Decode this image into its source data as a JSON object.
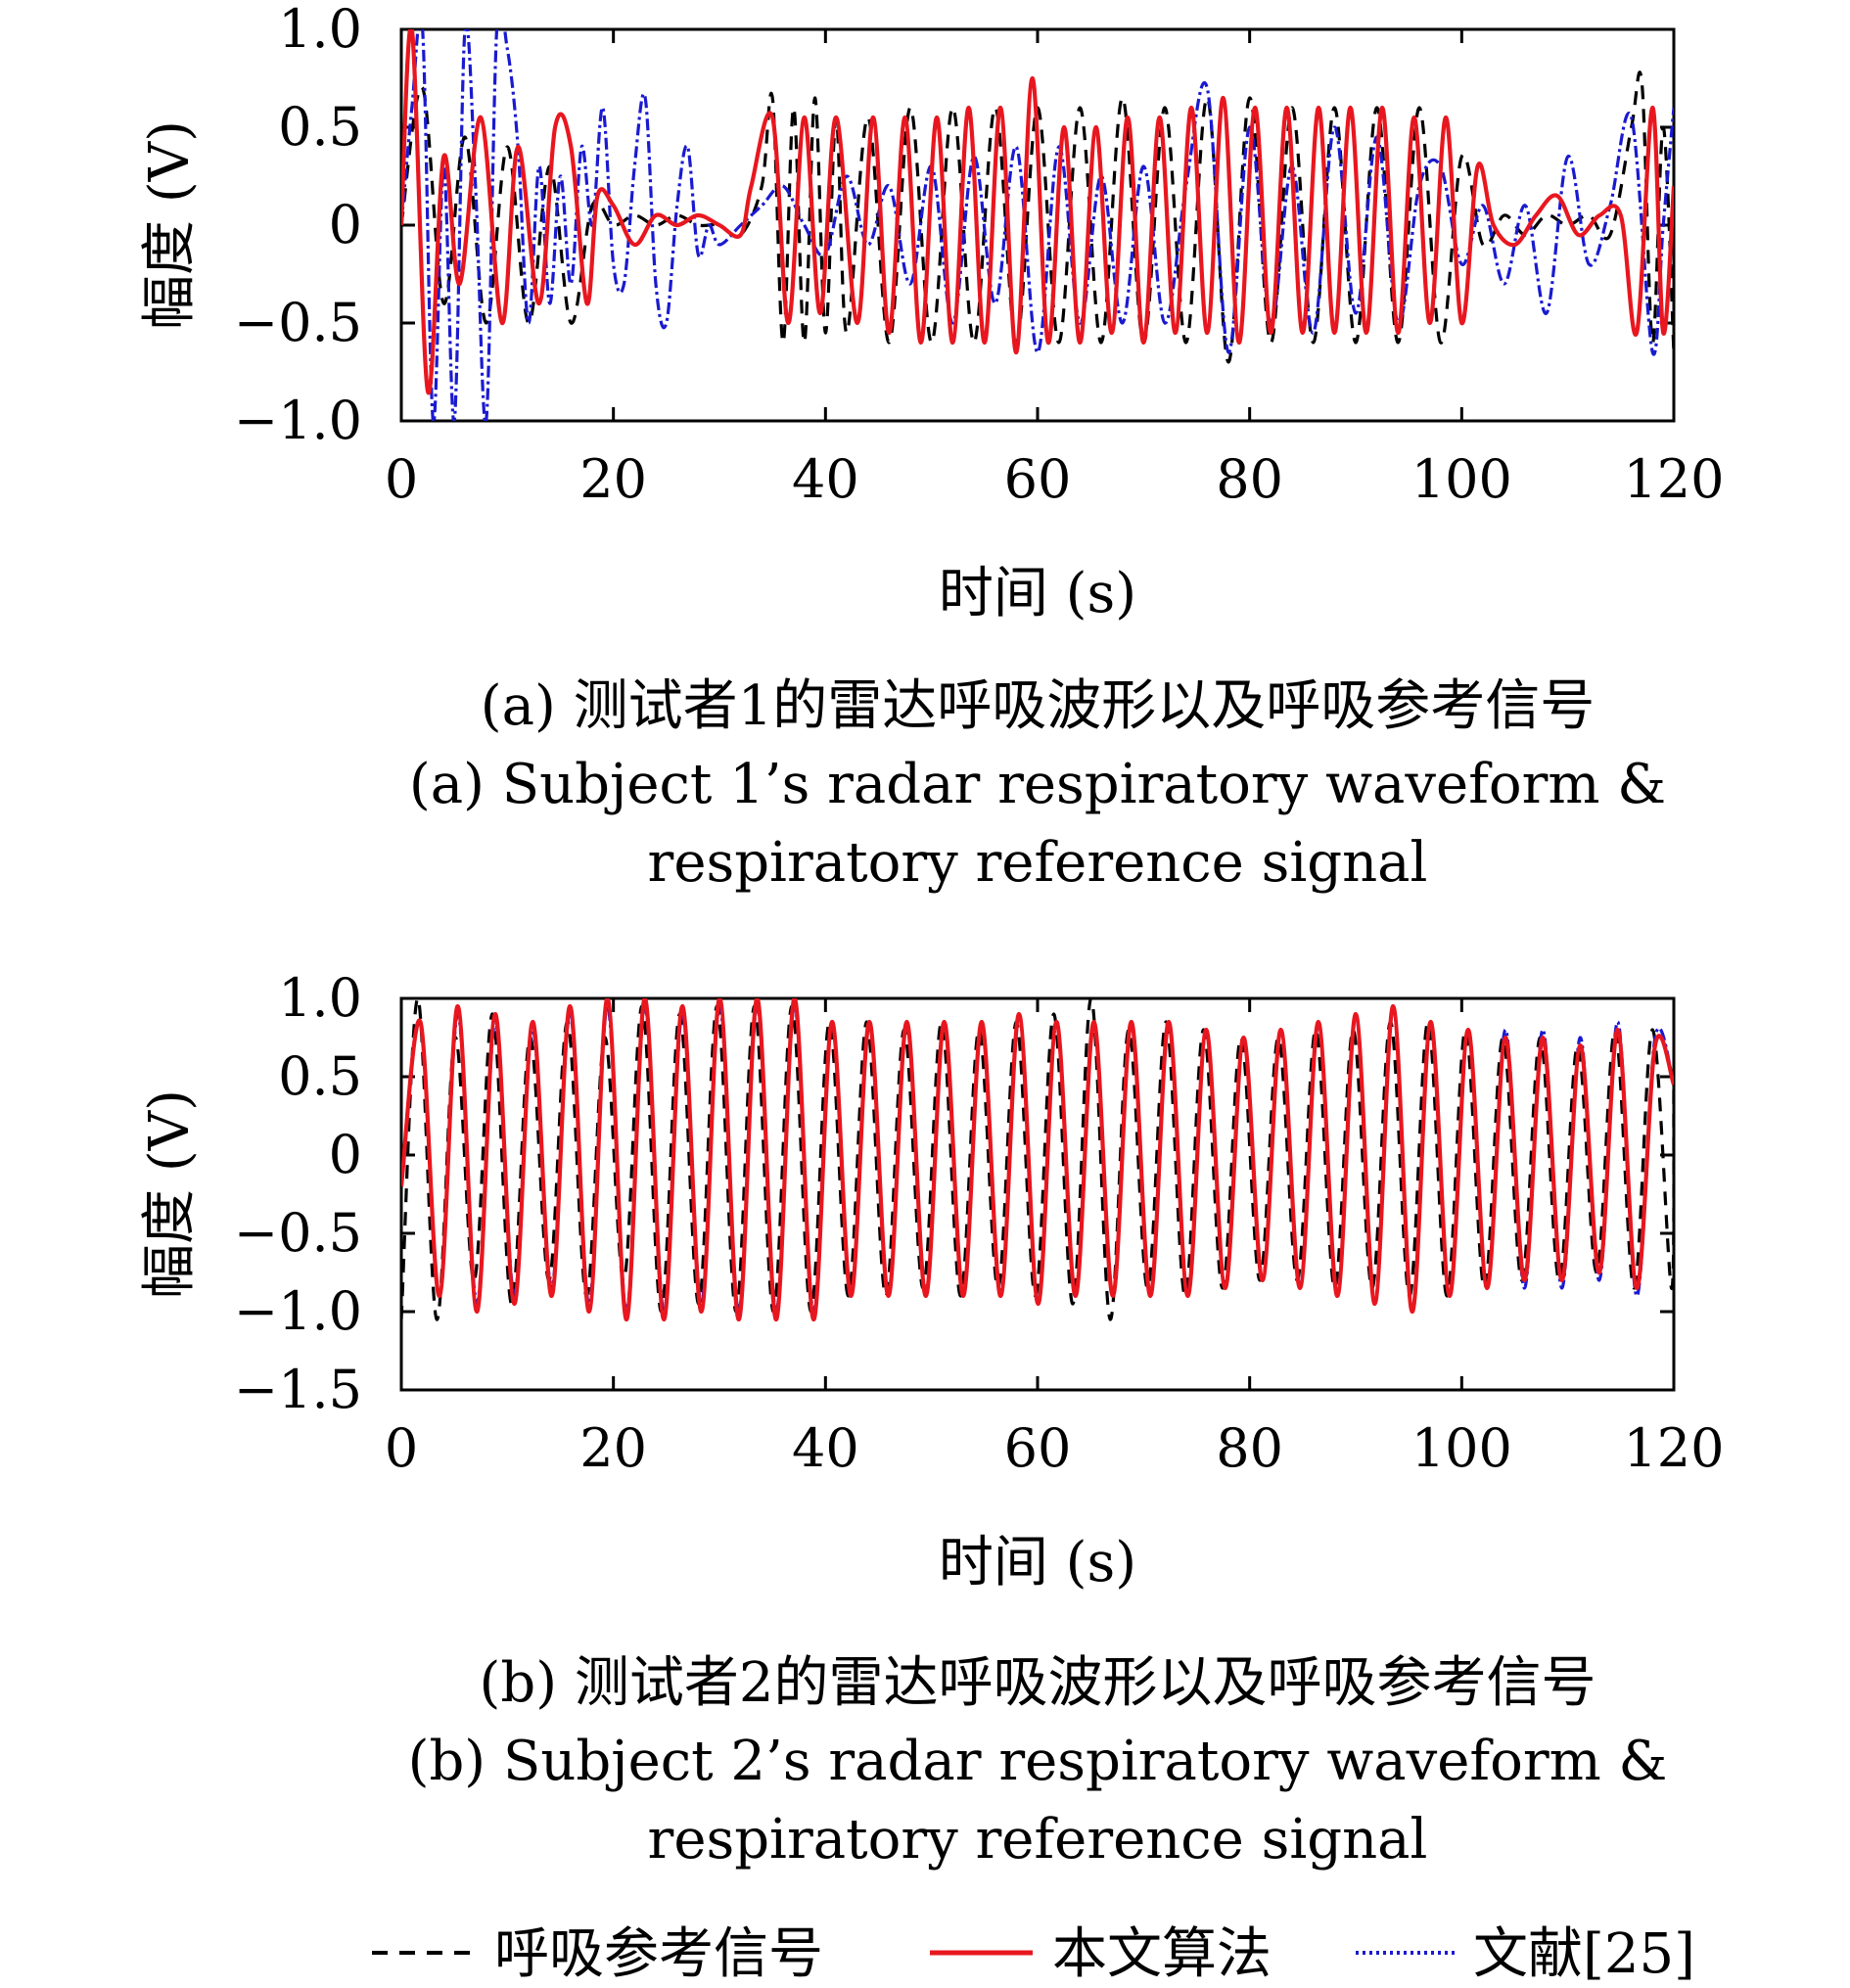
{
  "chart_data": [
    {
      "type": "line",
      "xlabel": "时间 (s)",
      "ylabel": "幅度 (V)",
      "xlim": [
        0,
        120
      ],
      "ylim": [
        -1.0,
        1.0
      ],
      "x_ticks": [
        "0",
        "20",
        "40",
        "60",
        "80",
        "100",
        "120"
      ],
      "y_ticks": [
        "1.0",
        "0.5",
        "0",
        "−0.5",
        "−1.0"
      ],
      "y_tick_values": [
        1.0,
        0.5,
        0,
        -0.5,
        -1.0
      ],
      "grid": false,
      "caption_cn": "(a) 测试者1的雷达呼吸波形以及呼吸参考信号",
      "caption_en_1": "(a) Subject 1’s radar respiratory waveform &",
      "caption_en_2": "respiratory reference signal",
      "series": [
        {
          "name": "呼吸参考信号",
          "x": [
            0,
            2,
            4,
            6,
            8,
            10,
            12,
            14,
            16,
            18,
            20,
            22,
            24,
            26,
            28,
            30,
            32,
            34,
            35,
            36,
            37,
            38,
            39,
            40,
            41,
            42,
            44,
            46,
            48,
            50,
            52,
            54,
            56,
            58,
            60,
            62,
            64,
            66,
            68,
            70,
            72,
            74,
            76,
            78,
            80,
            82,
            84,
            86,
            88,
            90,
            92,
            94,
            96,
            98,
            100,
            102,
            104,
            106,
            108,
            110,
            112,
            114,
            116,
            117,
            118,
            119,
            120
          ],
          "y": [
            0.0,
            0.7,
            -0.4,
            0.45,
            -0.5,
            0.4,
            -0.5,
            0.3,
            -0.5,
            0.1,
            0.0,
            0.05,
            0.0,
            0.05,
            0.0,
            0.0,
            -0.05,
            0.2,
            0.65,
            -0.6,
            0.6,
            -0.6,
            0.65,
            -0.55,
            0.55,
            -0.55,
            0.55,
            -0.6,
            0.6,
            -0.6,
            0.6,
            -0.6,
            0.6,
            -0.6,
            0.6,
            -0.6,
            0.6,
            -0.6,
            0.65,
            -0.6,
            0.6,
            -0.6,
            0.65,
            -0.7,
            0.65,
            -0.6,
            0.6,
            -0.6,
            0.6,
            -0.6,
            0.6,
            -0.6,
            0.6,
            -0.6,
            0.35,
            -0.1,
            0.05,
            -0.05,
            0.05,
            0.0,
            0.05,
            -0.05,
            0.5,
            0.72,
            -0.6,
            0.5,
            -0.65
          ]
        },
        {
          "name": "本文算法",
          "x": [
            0,
            1,
            2.5,
            4,
            5.5,
            7.5,
            9.5,
            11,
            13,
            14.5,
            16,
            17.5,
            18.5,
            20,
            22,
            24,
            26,
            28,
            30,
            32,
            33,
            35,
            36.5,
            38,
            39.5,
            41,
            43,
            44.5,
            46,
            47.5,
            49,
            50.5,
            52,
            53.5,
            55,
            56.5,
            58,
            59.5,
            61,
            62.5,
            64,
            65.5,
            67,
            68.5,
            70,
            71.5,
            73,
            74.5,
            76,
            77.5,
            79,
            80.5,
            82,
            83.5,
            85,
            86.5,
            88,
            89.5,
            91,
            92.5,
            94,
            95.5,
            97,
            98.5,
            100,
            101.5,
            103,
            105,
            107,
            109,
            111,
            113,
            115,
            116.5,
            118,
            119,
            120
          ],
          "y": [
            0.0,
            1.0,
            -0.85,
            0.35,
            -0.3,
            0.55,
            -0.5,
            0.4,
            -0.4,
            0.5,
            0.4,
            -0.4,
            0.15,
            0.1,
            -0.1,
            0.05,
            0.0,
            0.05,
            0.0,
            -0.05,
            0.2,
            0.55,
            -0.5,
            0.55,
            -0.45,
            0.55,
            -0.5,
            0.55,
            -0.55,
            0.55,
            -0.6,
            0.55,
            -0.6,
            0.6,
            -0.6,
            0.6,
            -0.65,
            0.75,
            -0.6,
            0.5,
            -0.6,
            0.5,
            -0.55,
            0.55,
            -0.6,
            0.55,
            -0.55,
            0.6,
            -0.55,
            0.65,
            -0.6,
            0.6,
            -0.55,
            0.6,
            -0.55,
            0.6,
            -0.55,
            0.6,
            -0.55,
            0.6,
            -0.55,
            0.55,
            -0.5,
            0.55,
            -0.5,
            0.3,
            0.0,
            -0.1,
            0.05,
            0.15,
            -0.05,
            0.05,
            0.05,
            -0.55,
            0.6,
            -0.55,
            0.2
          ]
        },
        {
          "name": "文献[25]",
          "x": [
            0,
            1,
            2,
            3,
            4,
            5,
            6,
            7,
            8,
            9,
            10,
            11,
            12,
            13,
            14,
            15,
            16,
            17,
            18,
            19,
            20,
            21,
            22,
            23,
            24,
            25,
            26,
            27,
            28,
            29,
            30,
            32,
            34,
            36,
            38,
            40,
            42,
            44,
            46,
            48,
            50,
            52,
            54,
            56,
            58,
            60,
            62,
            64,
            66,
            68,
            70,
            72,
            74,
            76,
            78,
            80,
            82,
            84,
            86,
            88,
            90,
            92,
            94,
            96,
            98,
            100,
            102,
            104,
            106,
            108,
            110,
            112,
            114,
            116,
            118,
            119,
            120
          ],
          "y": [
            0.0,
            0.6,
            1.0,
            -1.0,
            0.3,
            -1.0,
            1.0,
            0.2,
            -1.0,
            1.0,
            0.9,
            0.4,
            -0.5,
            0.3,
            -0.4,
            0.25,
            -0.3,
            0.4,
            0.0,
            0.6,
            -0.2,
            -0.3,
            0.3,
            0.65,
            -0.3,
            -0.5,
            0.1,
            0.4,
            -0.15,
            0.0,
            -0.1,
            0.0,
            0.1,
            0.2,
            0.0,
            -0.15,
            0.25,
            -0.1,
            0.2,
            -0.3,
            0.3,
            -0.5,
            0.35,
            -0.4,
            0.4,
            -0.65,
            0.4,
            -0.5,
            0.25,
            -0.5,
            0.3,
            -0.5,
            0.2,
            0.7,
            -0.65,
            0.5,
            -0.5,
            0.3,
            -0.55,
            0.5,
            -0.45,
            0.45,
            -0.5,
            0.2,
            0.3,
            -0.2,
            0.1,
            -0.3,
            0.1,
            -0.45,
            0.35,
            -0.2,
            0.1,
            0.55,
            -0.65,
            0.0,
            0.6
          ]
        }
      ]
    },
    {
      "type": "line",
      "xlabel": "时间 (s)",
      "ylabel": "幅度 (V)",
      "xlim": [
        0,
        120
      ],
      "ylim": [
        -1.5,
        1.0
      ],
      "x_ticks": [
        "0",
        "20",
        "40",
        "60",
        "80",
        "100",
        "120"
      ],
      "y_ticks": [
        "1.0",
        "0.5",
        "0",
        "−0.5",
        "−1.0",
        "−1.5"
      ],
      "y_tick_values": [
        1.0,
        0.5,
        0,
        -0.5,
        -1.0,
        -1.5
      ],
      "grid": false,
      "caption_cn": "(b) 测试者2的雷达呼吸波形以及呼吸参考信号",
      "caption_en_1": "(b) Subject 2’s radar respiratory waveform &",
      "caption_en_2": "respiratory reference signal",
      "series": [
        {
          "name": "呼吸参考信号",
          "amplitudes": [
            1.0,
            0.75,
            0.9,
            0.75,
            0.85,
            0.75,
            0.95,
            0.9,
            0.95,
            0.95,
            0.95,
            0.85,
            0.85,
            0.8,
            0.85,
            0.8,
            0.85,
            0.9,
            1.0,
            0.8,
            0.85,
            0.8,
            0.75,
            0.75,
            0.8,
            0.8,
            0.85,
            0.85,
            0.8,
            0.75,
            0.75,
            0.7,
            0.8,
            0.8
          ]
        },
        {
          "name": "本文算法",
          "amplitudes": [
            0.85,
            0.95,
            0.9,
            0.85,
            0.95,
            1.0,
            1.0,
            0.95,
            1.0,
            1.0,
            1.0,
            0.85,
            0.85,
            0.85,
            0.85,
            0.85,
            0.9,
            0.85,
            0.85,
            0.85,
            0.85,
            0.8,
            0.75,
            0.8,
            0.85,
            0.9,
            0.95,
            0.85,
            0.8,
            0.75,
            0.75,
            0.7,
            0.8,
            0.7
          ]
        },
        {
          "name": "文献[25]",
          "amplitudes": [
            0.85,
            0.9,
            0.85,
            0.8,
            0.9,
            0.95,
            0.95,
            0.9,
            0.95,
            0.95,
            0.95,
            0.85,
            0.85,
            0.85,
            0.85,
            0.85,
            0.9,
            0.85,
            0.85,
            0.85,
            0.85,
            0.8,
            0.75,
            0.8,
            0.85,
            0.9,
            0.95,
            0.85,
            0.8,
            0.8,
            0.8,
            0.75,
            0.85,
            0.75
          ]
        }
      ]
    }
  ],
  "legend": {
    "placement": "bottom",
    "items": [
      {
        "label": "呼吸参考信号",
        "color": "#000000",
        "style": "dashed"
      },
      {
        "label": "本文算法",
        "color": "#e8171f",
        "style": "solid"
      },
      {
        "label": "文献[25]",
        "color": "#1a1ad0",
        "style": "dotted"
      }
    ]
  },
  "colors": {
    "reference": "#000000",
    "proposed": "#e8171f",
    "literature": "#1a1ad0"
  }
}
